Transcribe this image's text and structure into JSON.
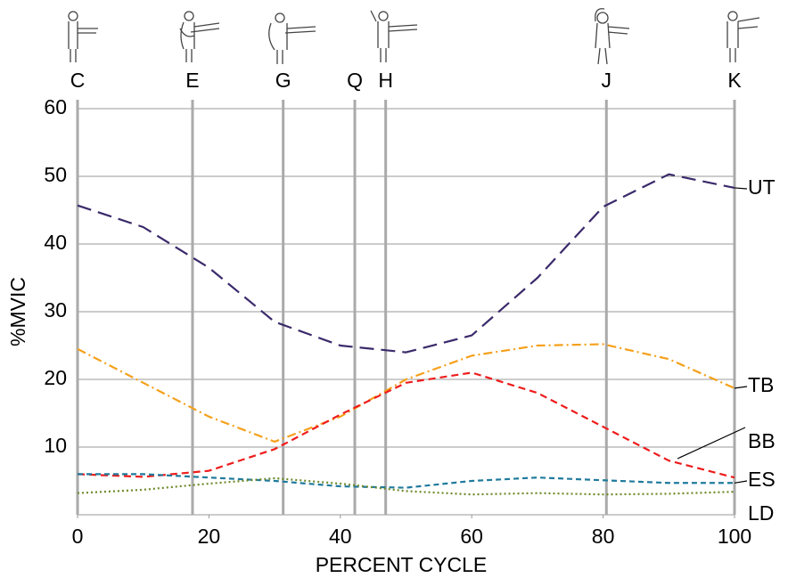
{
  "chart_data": {
    "type": "line",
    "xlabel": "PERCENT CYCLE",
    "ylabel": "%MVIC",
    "xlim": [
      0,
      100
    ],
    "ylim": [
      0,
      60
    ],
    "xticks": [
      0,
      20,
      40,
      60,
      80,
      100
    ],
    "yticks": [
      10,
      20,
      30,
      40,
      50,
      60
    ],
    "grid": true,
    "phases": [
      {
        "label": "C",
        "x": 0
      },
      {
        "label": "E",
        "x": 17.5
      },
      {
        "label": "G",
        "x": 31.3
      },
      {
        "label": "Q",
        "x": 42.2
      },
      {
        "label": "H",
        "x": 46.9
      },
      {
        "label": "J",
        "x": 80.5
      },
      {
        "label": "K",
        "x": 100
      }
    ],
    "x": [
      0,
      10,
      20,
      30,
      40,
      50,
      60,
      70,
      80,
      90,
      100
    ],
    "series": [
      {
        "name": "UT",
        "color": "#3b2a6b",
        "dash": "16 8",
        "values": [
          45.7,
          42.5,
          36.5,
          28.5,
          25,
          24,
          26.5,
          35,
          45.5,
          50.3,
          48.3
        ]
      },
      {
        "name": "TB",
        "color": "#f5a01a",
        "dash": "10 4 2 4",
        "values": [
          24.5,
          19.5,
          14.5,
          10.8,
          14.5,
          20,
          23.5,
          25,
          25.2,
          23,
          18.7
        ]
      },
      {
        "name": "BB",
        "color": "#ee1c1c",
        "dash": "8 5",
        "values": [
          6,
          5.6,
          6.5,
          9.7,
          14.8,
          19.5,
          21,
          18,
          13,
          8,
          5.5
        ]
      },
      {
        "name": "ES",
        "color": "#1f7a9c",
        "dash": "6 4",
        "values": [
          6,
          6,
          5.5,
          5,
          4.2,
          4,
          5,
          5.5,
          5.1,
          4.7,
          4.7
        ]
      },
      {
        "name": "LD",
        "color": "#6d8a2a",
        "dash": "2 3",
        "values": [
          3.2,
          3.7,
          4.6,
          5.4,
          4.6,
          3.5,
          3,
          3.2,
          3,
          3.1,
          3.4
        ]
      }
    ]
  }
}
